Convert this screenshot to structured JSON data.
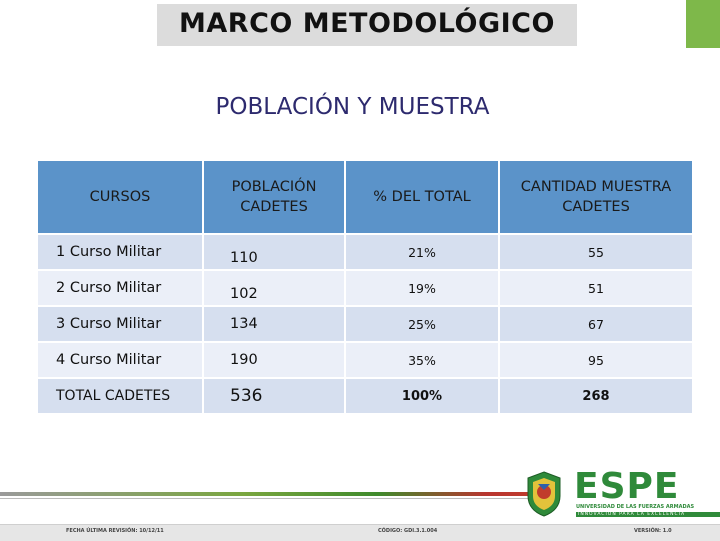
{
  "header": {
    "title": "MARCO METODOLÓGICO",
    "subtitle": "POBLACIÓN Y MUESTRA"
  },
  "table": {
    "headers": [
      "CURSOS",
      "POBLACIÓN CADETES",
      "% DEL TOTAL",
      "CANTIDAD MUESTRA CADETES"
    ],
    "rows": [
      [
        "1 Curso Militar",
        "110",
        "21%",
        "55"
      ],
      [
        "2 Curso Militar",
        "102",
        "19%",
        "51"
      ],
      [
        "3 Curso Militar",
        "134",
        "25%",
        "67"
      ],
      [
        "4 Curso Militar",
        "190",
        "35%",
        "95"
      ],
      [
        "TOTAL CADETES",
        "536",
        "100%",
        "268"
      ]
    ]
  },
  "footer": {
    "fecha_label": "FECHA ÚLTIMA REVISIÓN: 10/12/11",
    "codigo_label": "CÓDIGO: GDI.3.1.004",
    "version_label": "VERSIÓN: 1.0"
  },
  "logo": {
    "name": "ESPE",
    "university": "UNIVERSIDAD DE LAS FUERZAS ARMADAS",
    "motto": "INNOVACIÓN PARA LA EXCELENCIA"
  },
  "colors": {
    "header_row": "#5b93c9",
    "row_dark": "#d6dfef",
    "row_light": "#ebeff8",
    "subtitle": "#2d2a6e",
    "brand_green": "#2f8a3a"
  }
}
